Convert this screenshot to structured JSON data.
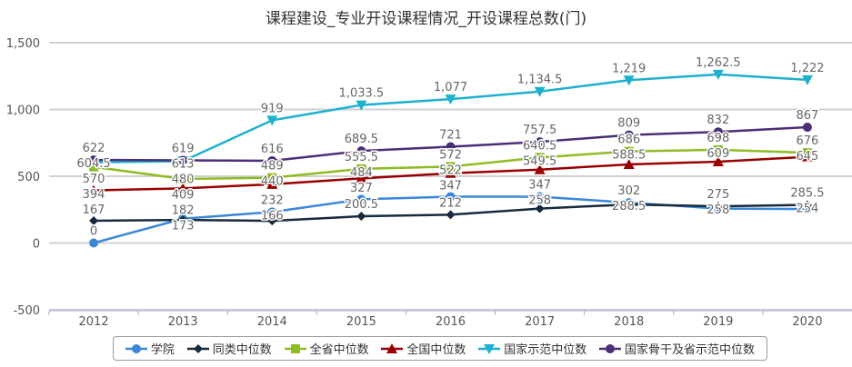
{
  "chart_data": {
    "type": "line",
    "title": "课程建设_专业开设课程情况_开设课程总数(门)",
    "categories": [
      "2012",
      "2013",
      "2014",
      "2015",
      "2016",
      "2017",
      "2018",
      "2019",
      "2020"
    ],
    "ylim": [
      -500,
      1500
    ],
    "yticks": [
      "-500",
      "0",
      "500",
      "1,000",
      "1,500"
    ],
    "ytick_values": [
      -500,
      0,
      500,
      1000,
      1500
    ],
    "legend_position": "bottom",
    "series": [
      {
        "name": "学院",
        "color": "#3a87d8",
        "marker": "circle",
        "values": [
          0,
          182,
          232,
          327,
          347,
          347,
          302,
          258,
          254
        ],
        "labels": [
          "0",
          "182",
          "232",
          "327",
          "347",
          "347",
          "302",
          "258",
          "254"
        ]
      },
      {
        "name": "同类中位数",
        "color": "#172a3e",
        "marker": "diamond",
        "values": [
          167,
          173,
          166,
          200.5,
          212,
          258,
          288.5,
          275,
          285.5
        ],
        "labels": [
          "167",
          "173",
          "166",
          "200.5",
          "212",
          "258",
          "288.5",
          "275",
          "285.5"
        ]
      },
      {
        "name": "全省中位数",
        "color": "#8ebc22",
        "marker": "square",
        "values": [
          570,
          480,
          489,
          555.5,
          572,
          640.5,
          686,
          698,
          676
        ],
        "labels": [
          "570",
          "480",
          "489",
          "555.5",
          "572",
          "640.5",
          "686",
          "698",
          "676"
        ]
      },
      {
        "name": "全国中位数",
        "color": "#990000",
        "marker": "triangle",
        "values": [
          394,
          409,
          440,
          484,
          522,
          549.5,
          588.5,
          609,
          645
        ],
        "labels": [
          "394",
          "409",
          "440",
          "484",
          "522",
          "549.5",
          "588.5",
          "609",
          "645"
        ]
      },
      {
        "name": "国家示范中位数",
        "color": "#1eb0d0",
        "marker": "triangle-down",
        "values": [
          604.5,
          613,
          919,
          1033.5,
          1077,
          1134.5,
          1219,
          1262.5,
          1222
        ],
        "labels": [
          "604.5",
          "613",
          "919",
          "1,033.5",
          "1,077",
          "1,134.5",
          "1,219",
          "1,262.5",
          "1,222"
        ]
      },
      {
        "name": "国家骨干及省示范中位数",
        "color": "#4b2d78",
        "marker": "circle",
        "values": [
          622,
          619,
          616,
          689.5,
          721,
          757.5,
          809,
          832,
          867
        ],
        "labels": [
          "622",
          "619",
          "616",
          "689.5",
          "721",
          "757.5",
          "809",
          "832",
          "867"
        ]
      }
    ]
  }
}
